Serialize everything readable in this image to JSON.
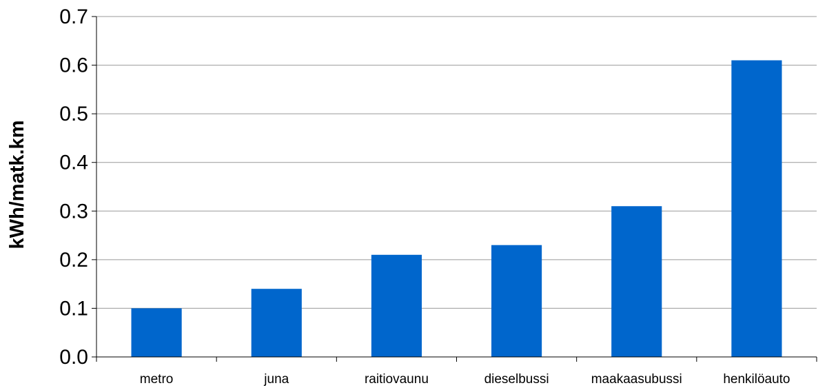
{
  "chart_data": {
    "type": "bar",
    "title": "",
    "xlabel": "",
    "ylabel": "kWh/matk.km",
    "categories": [
      "metro",
      "juna",
      "raitiovaunu",
      "dieselbussi",
      "maakaasubussi",
      "henkilöauto"
    ],
    "values": [
      0.1,
      0.14,
      0.21,
      0.23,
      0.31,
      0.61
    ],
    "ylim": [
      0,
      0.7
    ],
    "yticks": [
      "0.0",
      "0.1",
      "0.2",
      "0.3",
      "0.4",
      "0.5",
      "0.6",
      "0.7"
    ],
    "grid": true,
    "legend": "none",
    "bar_color": "#0066CC",
    "grid_color": "#999999",
    "axis_color": "#000000"
  }
}
